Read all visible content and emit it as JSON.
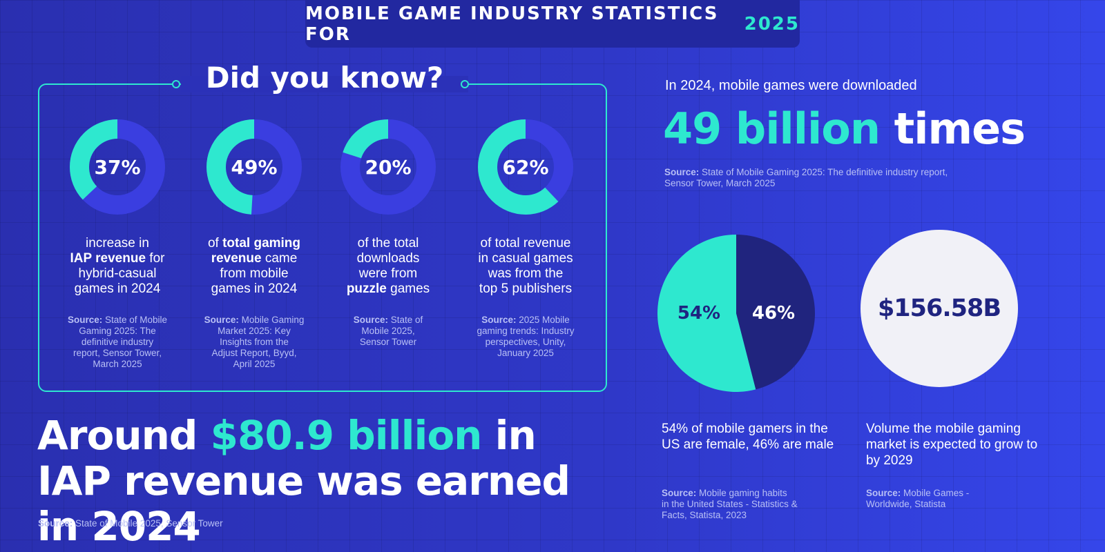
{
  "header": {
    "title_main": "MOBILE GAME INDUSTRY STATISTICS FOR",
    "title_year": "2025"
  },
  "did_you_know": {
    "title": "Did you know?",
    "stats": [
      {
        "value": 37,
        "label": "37%",
        "desc_html": "increase in<br><b>IAP revenue</b> for<br>hybrid-casual<br>games in 2024",
        "source_html": "<b>Source:</b> State of Mobile<br>Gaming 2025: The<br>definitive industry<br>report, Sensor Tower,<br>March 2025"
      },
      {
        "value": 49,
        "label": "49%",
        "desc_html": "of <b>total gaming<br>revenue</b> came<br>from mobile<br>games in 2024",
        "source_html": "<b>Source:</b> Mobile Gaming<br>Market 2025: Key<br>Insights from the<br>Adjust Report, Byyd,<br>April 2025"
      },
      {
        "value": 20,
        "label": "20%",
        "desc_html": "of the total<br>downloads<br>were from<br><b>puzzle</b> games",
        "source_html": "<b>Source:</b> State of<br>Mobile 2025,<br>Sensor Tower"
      },
      {
        "value": 62,
        "label": "62%",
        "desc_html": "of total revenue<br>in casual games<br>was from the<br>top 5 publishers",
        "source_html": "<b>Source:</b> 2025 Mobile<br>gaming trends: Industry<br>perspectives, Unity,<br>January 2025"
      }
    ]
  },
  "iap": {
    "prefix": "Around ",
    "highlight": "$80.9 billion",
    "suffix": " in IAP revenue was earned in 2024",
    "source_html": "<b>Source:</b> State of Mobile 2025, Sensor Tower"
  },
  "downloads": {
    "lead": "In 2024, mobile games were downloaded",
    "highlight": "49 billion",
    "suffix": " times",
    "source_html": "<b>Source:</b> State of Mobile Gaming 2025: The definitive industry report,<br>Sensor Tower, March 2025"
  },
  "gender": {
    "female_pct": 54,
    "male_pct": 46,
    "female_label": "54%",
    "male_label": "46%",
    "caption": "54% of mobile gamers in the US are female, 46% are male",
    "source_html": "<b>Source:</b> Mobile gaming habits<br>in the United States - Statistics &amp;<br>Facts, Statista, 2023"
  },
  "market": {
    "value_label": "$156.58B",
    "caption": "Volume the mobile gaming market is expected to grow to by 2029",
    "source_html": "<b>Source:</b> Mobile Games -<br>Worldwide, Statista"
  },
  "colors": {
    "accent": "#2ee8cf",
    "donut_base": "#3a3ee0",
    "pie_male": "#20247e",
    "circle_bg": "#f1f1f7"
  }
}
